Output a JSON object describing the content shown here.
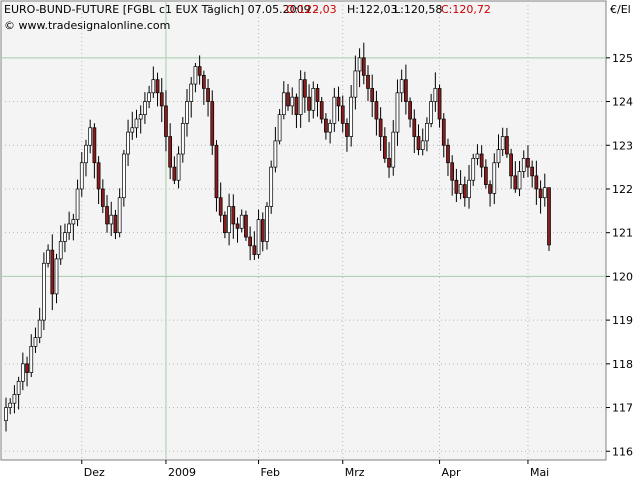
{
  "header": {
    "title": "EURO-BUND-FUTURE [FGBL c1 EUX  Täglich] 07.05.2009 -",
    "open": "O:122,03",
    "high": "H:122,03",
    "low": "L:120,58",
    "close": "C:120,72",
    "source": "© www.tradesignalonline.com",
    "unit": "€/El"
  },
  "colors": {
    "plot_bg": "#f4f4f4",
    "bull_body": "#ffffff",
    "bear_body": "#8b1c1c",
    "wick": "#000000",
    "grid_dot": "#b8b8b8",
    "major_line": "#a9cfa9",
    "red_text": "#cc0000"
  },
  "chart_data": {
    "type": "candlestick",
    "title": "EURO-BUND-FUTURE [FGBL c1 EUX  Täglich] 07.05.2009",
    "ylim": [
      115.8,
      126.3
    ],
    "y_ticks": [
      116,
      117,
      118,
      119,
      120,
      121,
      122,
      123,
      124,
      125
    ],
    "x_ticks": [
      {
        "label": "Dez",
        "index": 18
      },
      {
        "label": "2009",
        "index": 38
      },
      {
        "label": "Feb",
        "index": 60
      },
      {
        "label": "Mrz",
        "index": 80
      },
      {
        "label": "Apr",
        "index": 103
      },
      {
        "label": "Mai",
        "index": 124
      }
    ],
    "major_y": [
      120,
      125
    ],
    "major_x_index": 38,
    "last": {
      "open": 122.03,
      "high": 122.03,
      "low": 120.58,
      "close": 120.72
    },
    "closes": [
      117.0,
      117.1,
      117.3,
      117.6,
      118.0,
      117.8,
      118.4,
      118.6,
      119.0,
      120.3,
      120.6,
      119.6,
      120.4,
      120.8,
      121.0,
      121.2,
      121.3,
      122.0,
      122.6,
      123.0,
      123.4,
      122.6,
      122.0,
      121.6,
      121.2,
      121.4,
      121.0,
      121.8,
      122.8,
      123.3,
      123.4,
      123.6,
      123.7,
      124.0,
      124.2,
      124.5,
      124.2,
      123.9,
      123.2,
      122.5,
      122.2,
      122.8,
      123.5,
      124.0,
      124.4,
      124.8,
      124.6,
      124.3,
      124.0,
      123.0,
      121.8,
      121.4,
      121.0,
      121.6,
      121.2,
      121.1,
      121.4,
      120.9,
      120.7,
      120.5,
      121.3,
      120.8,
      121.6,
      122.5,
      123.1,
      123.7,
      124.2,
      123.9,
      124.1,
      123.7,
      124.5,
      124.1,
      123.8,
      124.3,
      124.0,
      123.6,
      123.3,
      123.5,
      124.1,
      123.9,
      123.5,
      123.2,
      124.1,
      124.7,
      125.0,
      124.6,
      124.3,
      124.0,
      123.6,
      123.2,
      122.7,
      122.5,
      123.3,
      124.2,
      124.5,
      124.0,
      123.6,
      123.2,
      122.9,
      123.1,
      123.5,
      124.0,
      124.3,
      123.6,
      123.0,
      122.6,
      122.2,
      121.9,
      122.1,
      121.8,
      122.2,
      122.7,
      122.8,
      122.5,
      122.1,
      121.9,
      122.6,
      122.9,
      123.2,
      122.8,
      122.3,
      122.0,
      122.4,
      122.7,
      122.5,
      122.3,
      122.0,
      121.8,
      122.03,
      120.72
    ]
  }
}
